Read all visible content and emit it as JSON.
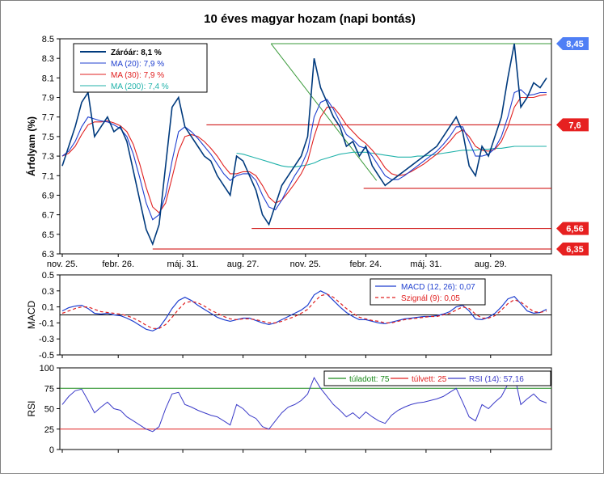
{
  "chart_data": [
    {
      "type": "line",
      "title": "10 éves magyar hozam (napi bontás)",
      "ylabel": "Árfolyam (%)",
      "ylim": [
        6.3,
        8.5
      ],
      "yticks": [
        "6.3",
        "6.5",
        "6.7",
        "6.9",
        "7.1",
        "7.3",
        "7.5",
        "7.7",
        "7.9",
        "8.1",
        "8.3",
        "8.5"
      ],
      "xticks": [
        "nov. 25.",
        "febr. 26.",
        "máj. 31.",
        "aug. 27.",
        "nov. 25.",
        "febr. 24.",
        "máj. 31.",
        "aug. 29."
      ],
      "grid": false,
      "legend_position": "top-left",
      "legend": [
        "Záróár: 8,1 %",
        "MA (20): 7,9 %",
        "MA (30): 7,9 %",
        "MA (200): 7,4 %"
      ],
      "level_labels": [
        "8,45",
        "7,6",
        "6,56",
        "6,35"
      ],
      "horizontal_levels": [
        8.45,
        7.62,
        6.97,
        6.56,
        6.35
      ],
      "trend_line": {
        "from": [
          4.85,
          8.45
        ],
        "to": [
          7.3,
          7.05
        ]
      },
      "x": [
        0,
        0.15,
        0.3,
        0.45,
        0.6,
        0.75,
        0.9,
        1.05,
        1.2,
        1.35,
        1.5,
        1.65,
        1.8,
        1.95,
        2.1,
        2.25,
        2.4,
        2.55,
        2.7,
        2.85,
        3.0,
        3.15,
        3.3,
        3.45,
        3.6,
        3.75,
        3.9,
        4.05,
        4.2,
        4.35,
        4.5,
        4.65,
        4.8,
        4.95,
        5.1,
        5.25,
        5.4,
        5.55,
        5.7,
        5.85,
        6.0,
        6.15,
        6.3,
        6.45,
        6.6,
        6.75,
        6.9,
        7.05,
        7.2,
        7.35,
        7.5,
        7.65,
        7.8,
        7.95,
        8.1,
        8.25,
        8.4,
        8.55,
        8.7,
        8.85,
        9.0,
        9.15,
        9.3,
        9.45,
        9.6,
        9.75,
        9.9,
        10.05,
        10.2,
        10.35,
        10.5,
        10.65,
        10.8,
        10.95,
        11.1,
        11.25
      ],
      "series": [
        {
          "name": "Záróár",
          "color": "#003a7d",
          "values": [
            7.2,
            7.4,
            7.6,
            7.85,
            7.95,
            7.5,
            7.6,
            7.7,
            7.55,
            7.6,
            7.45,
            7.15,
            6.85,
            6.55,
            6.4,
            6.6,
            7.2,
            7.8,
            7.9,
            7.6,
            7.5,
            7.4,
            7.3,
            7.25,
            7.1,
            7.0,
            6.9,
            7.3,
            7.25,
            7.1,
            6.95,
            6.7,
            6.6,
            6.8,
            7.0,
            7.1,
            7.2,
            7.3,
            7.5,
            8.3,
            8.0,
            7.85,
            7.7,
            7.6,
            7.4,
            7.45,
            7.3,
            7.4,
            7.2,
            7.1,
            7.0,
            7.05,
            7.1,
            7.15,
            7.2,
            7.25,
            7.3,
            7.35,
            7.4,
            7.5,
            7.6,
            7.7,
            7.55,
            7.2,
            7.1,
            7.4,
            7.3,
            7.5,
            7.7,
            8.1,
            8.45,
            7.8,
            7.9,
            8.05,
            8.0,
            8.1
          ]
        },
        {
          "name": "MA (20)",
          "color": "#1f3fcf",
          "values": [
            7.3,
            7.35,
            7.45,
            7.6,
            7.7,
            7.68,
            7.66,
            7.65,
            7.62,
            7.58,
            7.5,
            7.32,
            7.08,
            6.82,
            6.65,
            6.7,
            6.9,
            7.25,
            7.55,
            7.6,
            7.55,
            7.48,
            7.4,
            7.32,
            7.22,
            7.12,
            7.05,
            7.1,
            7.12,
            7.12,
            7.05,
            6.9,
            6.78,
            6.75,
            6.85,
            6.98,
            7.1,
            7.2,
            7.35,
            7.7,
            7.85,
            7.88,
            7.78,
            7.65,
            7.52,
            7.47,
            7.4,
            7.38,
            7.3,
            7.2,
            7.1,
            7.06,
            7.06,
            7.1,
            7.15,
            7.2,
            7.25,
            7.3,
            7.35,
            7.42,
            7.5,
            7.6,
            7.6,
            7.45,
            7.3,
            7.3,
            7.32,
            7.38,
            7.5,
            7.7,
            7.95,
            7.98,
            7.92,
            7.93,
            7.95,
            7.95
          ]
        },
        {
          "name": "MA (30)",
          "color": "#e02020",
          "values": [
            7.3,
            7.33,
            7.4,
            7.52,
            7.62,
            7.65,
            7.65,
            7.66,
            7.64,
            7.61,
            7.55,
            7.42,
            7.22,
            6.98,
            6.78,
            6.72,
            6.82,
            7.08,
            7.35,
            7.5,
            7.52,
            7.5,
            7.45,
            7.38,
            7.3,
            7.2,
            7.12,
            7.12,
            7.14,
            7.14,
            7.1,
            7.0,
            6.88,
            6.82,
            6.85,
            6.93,
            7.02,
            7.12,
            7.25,
            7.5,
            7.7,
            7.8,
            7.8,
            7.72,
            7.62,
            7.55,
            7.48,
            7.43,
            7.36,
            7.28,
            7.18,
            7.12,
            7.1,
            7.11,
            7.14,
            7.18,
            7.22,
            7.27,
            7.32,
            7.38,
            7.45,
            7.53,
            7.57,
            7.5,
            7.4,
            7.36,
            7.35,
            7.37,
            7.45,
            7.6,
            7.8,
            7.9,
            7.9,
            7.9,
            7.92,
            7.93
          ]
        },
        {
          "name": "MA (200)",
          "color": "#20b2aa",
          "values": [
            null,
            null,
            null,
            null,
            null,
            null,
            null,
            null,
            null,
            null,
            null,
            null,
            null,
            null,
            null,
            null,
            null,
            null,
            null,
            null,
            null,
            null,
            null,
            null,
            null,
            null,
            null,
            7.33,
            7.32,
            7.3,
            7.28,
            7.26,
            7.24,
            7.22,
            7.2,
            7.19,
            7.19,
            7.2,
            7.21,
            7.23,
            7.26,
            7.28,
            7.3,
            7.32,
            7.33,
            7.34,
            7.34,
            7.34,
            7.33,
            7.32,
            7.31,
            7.3,
            7.29,
            7.29,
            7.29,
            7.3,
            7.3,
            7.31,
            7.32,
            7.33,
            7.34,
            7.35,
            7.36,
            7.36,
            7.36,
            7.37,
            7.37,
            7.38,
            7.38,
            7.39,
            7.4,
            7.4,
            7.4,
            7.4,
            7.4,
            7.4
          ]
        }
      ]
    },
    {
      "type": "line",
      "ylabel": "MACD",
      "ylim": [
        -0.5,
        0.5
      ],
      "yticks": [
        "0.5",
        "0.3",
        "0.1",
        "-0.1",
        "-0.3",
        "-0.5"
      ],
      "legend_position": "top-right",
      "legend": [
        "MACD (12, 26): 0,07",
        "Szignál (9): 0,05"
      ],
      "series": [
        {
          "name": "MACD (12, 26)",
          "color": "#1f3fcf",
          "values": [
            0.05,
            0.09,
            0.11,
            0.12,
            0.08,
            0.02,
            0.01,
            0.02,
            0.0,
            -0.01,
            -0.04,
            -0.08,
            -0.13,
            -0.18,
            -0.2,
            -0.16,
            -0.05,
            0.08,
            0.18,
            0.22,
            0.18,
            0.12,
            0.07,
            0.02,
            -0.03,
            -0.06,
            -0.08,
            -0.06,
            -0.04,
            -0.04,
            -0.07,
            -0.1,
            -0.12,
            -0.1,
            -0.06,
            -0.02,
            0.02,
            0.06,
            0.12,
            0.25,
            0.3,
            0.26,
            0.18,
            0.1,
            0.03,
            -0.02,
            -0.06,
            -0.06,
            -0.08,
            -0.1,
            -0.11,
            -0.09,
            -0.07,
            -0.05,
            -0.04,
            -0.03,
            -0.02,
            -0.02,
            -0.01,
            0.01,
            0.04,
            0.1,
            0.12,
            0.05,
            -0.05,
            -0.06,
            -0.03,
            0.02,
            0.1,
            0.2,
            0.23,
            0.14,
            0.05,
            0.02,
            0.03,
            0.07
          ]
        },
        {
          "name": "Szignál (9)",
          "color": "#e02020",
          "dashed": true,
          "values": [
            0.02,
            0.05,
            0.08,
            0.1,
            0.1,
            0.07,
            0.04,
            0.03,
            0.02,
            0.01,
            -0.01,
            -0.04,
            -0.08,
            -0.13,
            -0.17,
            -0.17,
            -0.12,
            -0.03,
            0.07,
            0.15,
            0.17,
            0.15,
            0.11,
            0.06,
            0.02,
            -0.02,
            -0.05,
            -0.06,
            -0.05,
            -0.05,
            -0.06,
            -0.08,
            -0.1,
            -0.1,
            -0.08,
            -0.05,
            -0.02,
            0.02,
            0.07,
            0.16,
            0.24,
            0.26,
            0.22,
            0.15,
            0.08,
            0.02,
            -0.03,
            -0.05,
            -0.07,
            -0.08,
            -0.1,
            -0.1,
            -0.08,
            -0.06,
            -0.05,
            -0.04,
            -0.03,
            -0.02,
            -0.02,
            0.0,
            0.02,
            0.06,
            0.1,
            0.08,
            0.01,
            -0.04,
            -0.04,
            -0.01,
            0.06,
            0.14,
            0.19,
            0.16,
            0.1,
            0.04,
            0.03,
            0.05
          ]
        }
      ]
    },
    {
      "type": "line",
      "ylabel": "RSI",
      "ylim": [
        0,
        100
      ],
      "yticks": [
        "100",
        "75",
        "50",
        "25",
        "0"
      ],
      "legend_position": "top-right",
      "legend": [
        "túladott: 75",
        "túlvett: 25",
        "RSI (14): 57,16"
      ],
      "levels": [
        {
          "name": "túladott",
          "value": 75,
          "color": "#1a8a1a"
        },
        {
          "name": "túlvett",
          "value": 25,
          "color": "#e02020"
        }
      ],
      "series": [
        {
          "name": "RSI (14)",
          "color": "#3a3ac8",
          "values": [
            55,
            65,
            72,
            74,
            60,
            45,
            52,
            58,
            50,
            48,
            40,
            35,
            30,
            25,
            22,
            28,
            50,
            68,
            70,
            55,
            52,
            48,
            45,
            42,
            40,
            35,
            30,
            55,
            50,
            42,
            38,
            28,
            25,
            35,
            45,
            52,
            55,
            60,
            68,
            88,
            75,
            65,
            55,
            48,
            40,
            45,
            38,
            46,
            40,
            35,
            32,
            42,
            48,
            52,
            55,
            57,
            58,
            60,
            62,
            65,
            70,
            75,
            58,
            40,
            35,
            55,
            50,
            58,
            65,
            80,
            92,
            55,
            62,
            68,
            60,
            57
          ]
        }
      ]
    }
  ]
}
